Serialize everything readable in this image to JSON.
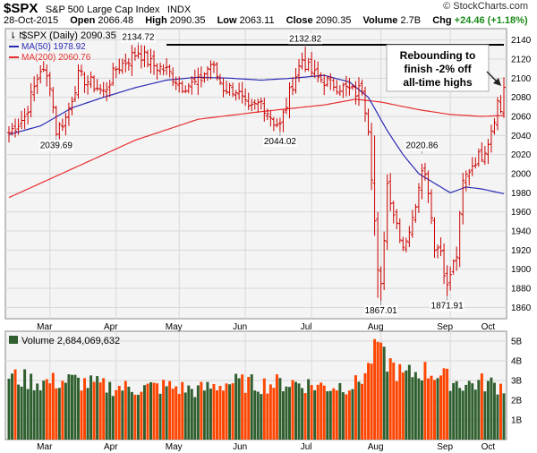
{
  "header": {
    "symbol": "$SPX",
    "name": "S&P 500 Large Cap Index",
    "exchange": "INDX",
    "brand": "© StockCharts.com",
    "date": "28-Oct-2015",
    "open_label": "Open",
    "open": "2066.48",
    "high_label": "High",
    "high": "2090.35",
    "low_label": "Low",
    "low": "2063.11",
    "close_label": "Close",
    "close": "2090.35",
    "volume_label": "Volume",
    "volume": "2.7B",
    "chg_label": "Chg",
    "chg": "+24.46 (+1.18%)"
  },
  "legend": {
    "series": "$SPX (Daily) 2090.35",
    "ma50": "MA(50) 1978.92",
    "ma200": "MA(200) 2060.76",
    "volume": "Volume 2,684,069,632"
  },
  "colors": {
    "price_bars": "#cc0000",
    "ma50": "#2b2bb5",
    "ma200": "#e83030",
    "volume_up": "#2f5f2f",
    "volume_down": "#ff4500",
    "grid": "#d8d8d8",
    "panel_bg": "#f4f4f4"
  },
  "annotation": {
    "lines": [
      "Rebounding to",
      "finish -2% off",
      "all-time highs"
    ]
  },
  "chart_data": [
    {
      "type": "bar",
      "subtype": "ohlc",
      "y_axis_side": "right",
      "ylim": [
        1850,
        2150
      ],
      "yticks": [
        1860,
        1880,
        1900,
        1920,
        1940,
        1960,
        1980,
        2000,
        2020,
        2040,
        2060,
        2080,
        2100,
        2120,
        2140
      ],
      "x_months": [
        "Mar",
        "Apr",
        "May",
        "Jun",
        "Jul",
        "Aug",
        "Sep",
        "Oct"
      ],
      "grid": true,
      "price_labels": [
        {
          "label": "2134.72",
          "day": 41,
          "value": 2134.72,
          "pos": "above"
        },
        {
          "label": "2132.82",
          "day": 94,
          "value": 2132.82,
          "pos": "above"
        },
        {
          "label": "2039.69",
          "day": 15,
          "value": 2039.69,
          "pos": "below"
        },
        {
          "label": "2044.02",
          "day": 86,
          "value": 2044.02,
          "pos": "below"
        },
        {
          "label": "2020.86",
          "day": 131,
          "value": 2020.86,
          "pos": "above"
        },
        {
          "label": "1867.01",
          "day": 118,
          "value": 1867.01,
          "pos": "below"
        },
        {
          "label": "1871.91",
          "day": 139,
          "value": 1871.91,
          "pos": "below"
        }
      ],
      "resistance": {
        "value": 2135,
        "from_day": 50,
        "to_day": 157
      },
      "ohlc_waypoints": [
        [
          0,
          2043
        ],
        [
          5,
          2060
        ],
        [
          10,
          2110
        ],
        [
          13,
          2095
        ],
        [
          15,
          2045
        ],
        [
          18,
          2058
        ],
        [
          22,
          2102
        ],
        [
          26,
          2095
        ],
        [
          30,
          2085
        ],
        [
          34,
          2110
        ],
        [
          38,
          2120
        ],
        [
          41,
          2128
        ],
        [
          45,
          2115
        ],
        [
          50,
          2108
        ],
        [
          55,
          2092
        ],
        [
          60,
          2095
        ],
        [
          64,
          2115
        ],
        [
          68,
          2090
        ],
        [
          72,
          2088
        ],
        [
          76,
          2065
        ],
        [
          80,
          2075
        ],
        [
          84,
          2055
        ],
        [
          86,
          2050
        ],
        [
          90,
          2095
        ],
        [
          93,
          2120
        ],
        [
          95,
          2110
        ],
        [
          98,
          2100
        ],
        [
          102,
          2095
        ],
        [
          106,
          2090
        ],
        [
          110,
          2085
        ],
        [
          112,
          2090
        ],
        [
          114,
          2050
        ],
        [
          116,
          1950
        ],
        [
          117,
          1895
        ],
        [
          118,
          1880
        ],
        [
          120,
          1990
        ],
        [
          122,
          1960
        ],
        [
          125,
          1925
        ],
        [
          128,
          1950
        ],
        [
          131,
          2010
        ],
        [
          133,
          1985
        ],
        [
          135,
          1925
        ],
        [
          137,
          1920
        ],
        [
          139,
          1880
        ],
        [
          140,
          1895
        ],
        [
          142,
          1915
        ],
        [
          144,
          1990
        ],
        [
          146,
          2005
        ],
        [
          148,
          2015
        ],
        [
          150,
          2020
        ],
        [
          152,
          2035
        ],
        [
          154,
          2060
        ],
        [
          155,
          2075
        ],
        [
          156,
          2066
        ],
        [
          157,
          2090
        ]
      ],
      "ma50_waypoints": [
        [
          0,
          2041
        ],
        [
          10,
          2050
        ],
        [
          20,
          2069
        ],
        [
          30,
          2080
        ],
        [
          40,
          2090
        ],
        [
          50,
          2098
        ],
        [
          60,
          2101
        ],
        [
          70,
          2100
        ],
        [
          80,
          2098
        ],
        [
          90,
          2100
        ],
        [
          100,
          2103
        ],
        [
          108,
          2096
        ],
        [
          114,
          2080
        ],
        [
          120,
          2045
        ],
        [
          125,
          2020
        ],
        [
          130,
          2000
        ],
        [
          135,
          1990
        ],
        [
          140,
          1980
        ],
        [
          145,
          1986
        ],
        [
          150,
          1984
        ],
        [
          157,
          1979
        ]
      ],
      "ma200_waypoints": [
        [
          0,
          1975
        ],
        [
          20,
          2005
        ],
        [
          40,
          2035
        ],
        [
          60,
          2057
        ],
        [
          80,
          2065
        ],
        [
          100,
          2072
        ],
        [
          110,
          2078
        ],
        [
          118,
          2075
        ],
        [
          130,
          2067
        ],
        [
          140,
          2062
        ],
        [
          150,
          2060
        ],
        [
          157,
          2061
        ]
      ]
    },
    {
      "type": "bar",
      "name": "Volume",
      "y_axis_side": "right",
      "ylim": [
        0,
        5.5
      ],
      "yticks": [
        1,
        2,
        3,
        4,
        5
      ],
      "ytick_labels": [
        "1B",
        "2B",
        "3B",
        "4B",
        "5B"
      ],
      "x_months": [
        "Mar",
        "Apr",
        "May",
        "Jun",
        "Jul",
        "Aug",
        "Sep",
        "Oct"
      ],
      "grid": true,
      "volume_waypoints": [
        [
          0,
          3.2
        ],
        [
          10,
          2.9
        ],
        [
          20,
          3.0
        ],
        [
          30,
          2.7
        ],
        [
          40,
          2.6
        ],
        [
          50,
          2.7
        ],
        [
          60,
          2.5
        ],
        [
          70,
          2.9
        ],
        [
          80,
          2.8
        ],
        [
          90,
          2.9
        ],
        [
          100,
          2.7
        ],
        [
          110,
          2.8
        ],
        [
          114,
          3.6
        ],
        [
          116,
          4.8
        ],
        [
          117,
          5.0
        ],
        [
          118,
          4.2
        ],
        [
          120,
          4.0
        ],
        [
          125,
          3.2
        ],
        [
          131,
          3.5
        ],
        [
          135,
          3.4
        ],
        [
          140,
          3.0
        ],
        [
          145,
          2.8
        ],
        [
          150,
          2.9
        ],
        [
          157,
          2.7
        ]
      ]
    }
  ]
}
